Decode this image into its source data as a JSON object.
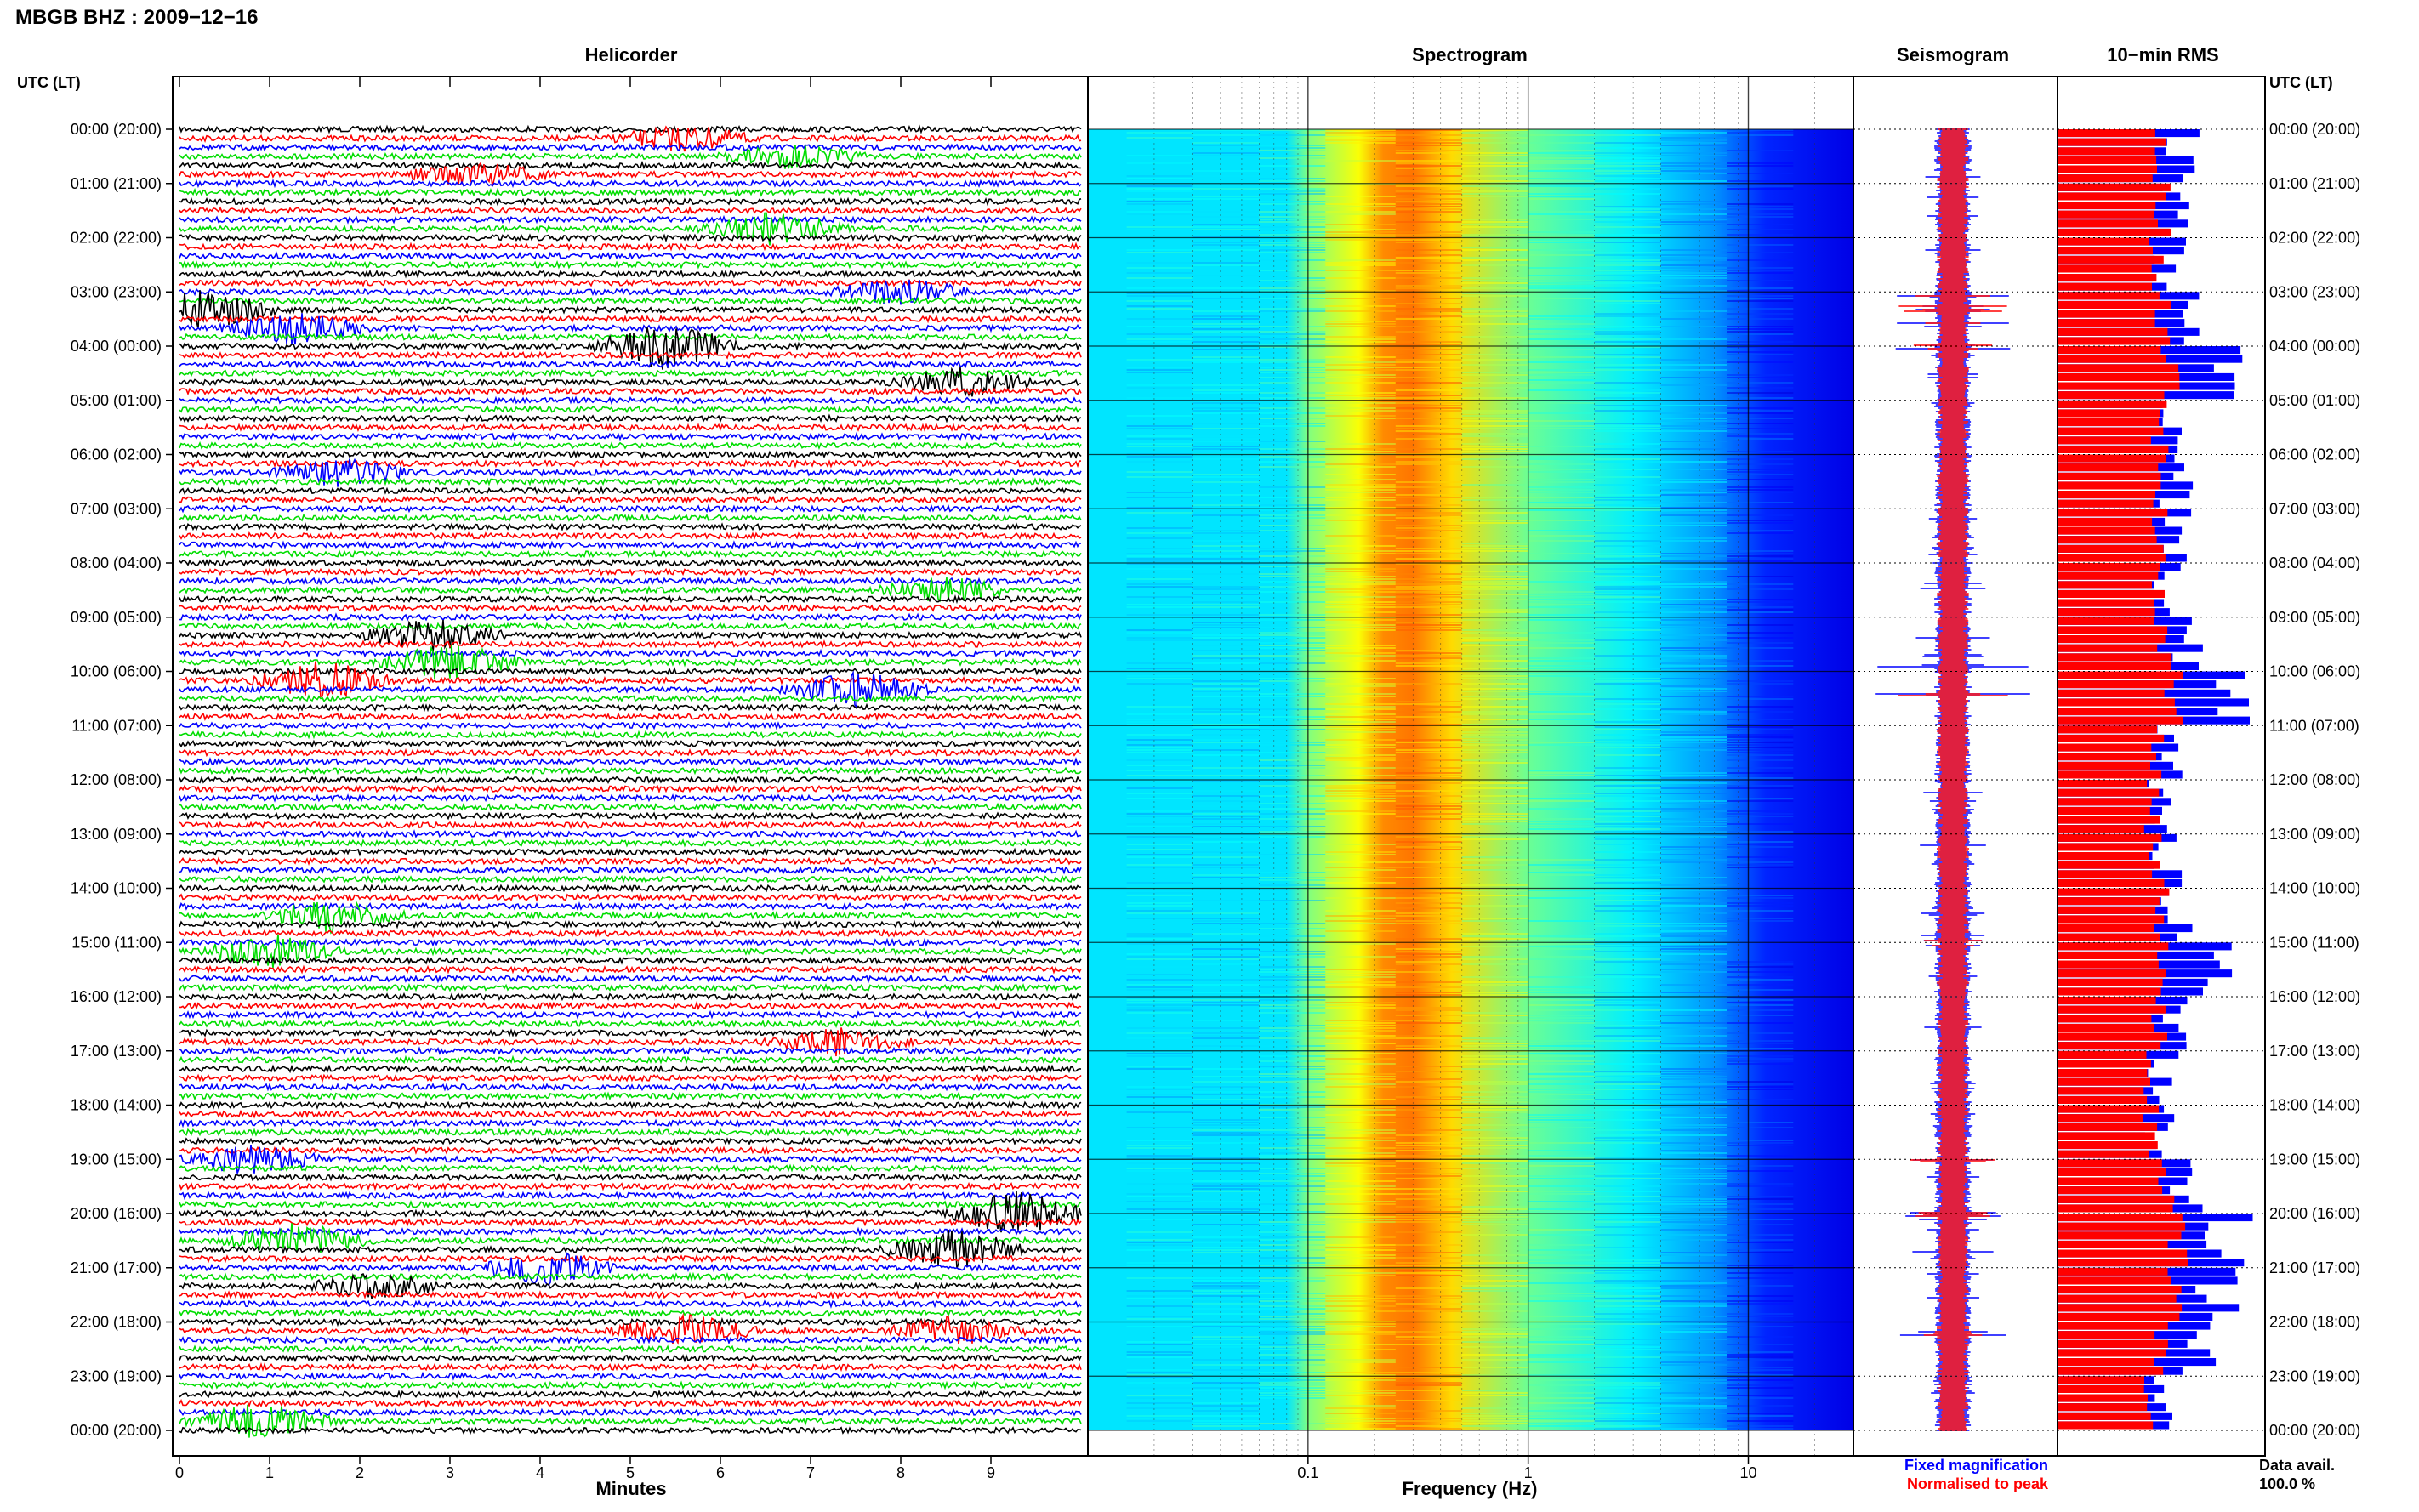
{
  "header": {
    "title": "MBGB BHZ : 2009−12−16"
  },
  "panels": {
    "helicorder": "Helicorder",
    "spectrogram": "Spectrogram",
    "seismogram": "Seismogram",
    "rms": "10−min RMS"
  },
  "axes": {
    "utc_label_left": "UTC (LT)",
    "utc_label_right": "UTC (LT)",
    "minutes_label": "Minutes",
    "frequency_label": "Frequency (Hz)"
  },
  "legend": {
    "fixed": "Fixed magnification",
    "normalised": "Normalised to peak",
    "fixed_color": "#0000ff",
    "normalised_color": "#ff0000"
  },
  "data_avail": {
    "label": "Data avail.",
    "value": "100.0 %"
  },
  "colors": {
    "trace_cycle": [
      "#000000",
      "#ff0000",
      "#0000ff",
      "#00dd00"
    ],
    "rms_fixed": "#0000ff",
    "rms_norm": "#ff0000"
  },
  "chart_data": [
    {
      "type": "line",
      "title": "Helicorder",
      "xlabel": "Minutes",
      "xlim": [
        0,
        10
      ],
      "xticks": [
        "0",
        "1",
        "2",
        "3",
        "4",
        "5",
        "6",
        "7",
        "8",
        "9"
      ],
      "ytick_labels": [
        "00:00 (20:00)",
        "01:00 (21:00)",
        "02:00 (22:00)",
        "03:00 (23:00)",
        "04:00 (00:00)",
        "05:00 (01:00)",
        "06:00 (02:00)",
        "07:00 (03:00)",
        "08:00 (04:00)",
        "09:00 (05:00)",
        "10:00 (06:00)",
        "11:00 (07:00)",
        "12:00 (08:00)",
        "13:00 (09:00)",
        "14:00 (10:00)",
        "15:00 (11:00)",
        "16:00 (12:00)",
        "17:00 (13:00)",
        "18:00 (14:00)",
        "19:00 (15:00)",
        "20:00 (16:00)",
        "21:00 (17:00)",
        "22:00 (18:00)",
        "23:00 (19:00)",
        "00:00 (20:00)"
      ],
      "lines_per_hour": 6,
      "minutes_per_line": 10,
      "events": [
        {
          "hour": 0.2,
          "minute": 5.6,
          "amp": 1.6
        },
        {
          "hour": 0.5,
          "minute": 6.8,
          "amp": 1.5
        },
        {
          "hour": 0.9,
          "minute": 3.3,
          "amp": 1.5
        },
        {
          "hour": 1.8,
          "minute": 6.6,
          "amp": 2.0
        },
        {
          "hour": 3.0,
          "minute": 8.0,
          "amp": 1.6
        },
        {
          "hour": 3.3,
          "minute": 0.3,
          "amp": 2.6
        },
        {
          "hour": 3.6,
          "minute": 1.3,
          "amp": 2.0
        },
        {
          "hour": 4.0,
          "minute": 5.4,
          "amp": 3.0
        },
        {
          "hour": 4.7,
          "minute": 8.7,
          "amp": 1.7
        },
        {
          "hour": 6.4,
          "minute": 1.8,
          "amp": 1.7
        },
        {
          "hour": 8.5,
          "minute": 8.5,
          "amp": 1.5
        },
        {
          "hour": 9.4,
          "minute": 2.8,
          "amp": 2.0
        },
        {
          "hour": 9.8,
          "minute": 3.0,
          "amp": 2.3
        },
        {
          "hour": 10.1,
          "minute": 1.6,
          "amp": 2.4
        },
        {
          "hour": 10.3,
          "minute": 7.5,
          "amp": 2.2
        },
        {
          "hour": 14.5,
          "minute": 1.7,
          "amp": 2.0
        },
        {
          "hour": 15.2,
          "minute": 1.0,
          "amp": 2.1
        },
        {
          "hour": 16.8,
          "minute": 7.3,
          "amp": 1.6
        },
        {
          "hour": 19.0,
          "minute": 0.8,
          "amp": 1.8
        },
        {
          "hour": 20.0,
          "minute": 9.3,
          "amp": 2.8
        },
        {
          "hour": 20.5,
          "minute": 1.3,
          "amp": 2.2
        },
        {
          "hour": 20.6,
          "minute": 8.6,
          "amp": 2.6
        },
        {
          "hour": 21.0,
          "minute": 4.1,
          "amp": 2.0
        },
        {
          "hour": 21.4,
          "minute": 2.2,
          "amp": 1.6
        },
        {
          "hour": 22.1,
          "minute": 5.6,
          "amp": 2.0
        },
        {
          "hour": 22.1,
          "minute": 8.6,
          "amp": 1.7
        },
        {
          "hour": 23.9,
          "minute": 0.9,
          "amp": 2.2
        }
      ]
    },
    {
      "type": "heatmap",
      "title": "Spectrogram",
      "xlabel": "Frequency (Hz)",
      "xscale": "log",
      "xlim": [
        0.01,
        30
      ],
      "xticks": [
        {
          "value": 0.1,
          "label": "0.1"
        },
        {
          "value": 1,
          "label": "1"
        },
        {
          "value": 10,
          "label": "10"
        }
      ],
      "ylim_hours": [
        0,
        24
      ],
      "colormap": "jet",
      "peak_band_hz": [
        0.2,
        0.4
      ],
      "profile": [
        {
          "f": 0.01,
          "level": 0.35
        },
        {
          "f": 0.08,
          "level": 0.35
        },
        {
          "f": 0.1,
          "level": 0.5
        },
        {
          "f": 0.17,
          "level": 0.62
        },
        {
          "f": 0.22,
          "level": 0.74
        },
        {
          "f": 0.3,
          "level": 0.76
        },
        {
          "f": 0.45,
          "level": 0.66
        },
        {
          "f": 1.0,
          "level": 0.48
        },
        {
          "f": 3.0,
          "level": 0.36
        },
        {
          "f": 7.0,
          "level": 0.27
        },
        {
          "f": 12.0,
          "level": 0.16
        },
        {
          "f": 30.0,
          "level": 0.1
        }
      ]
    },
    {
      "type": "line",
      "title": "Seismogram",
      "ylim_hours": [
        0,
        24
      ],
      "series": [
        {
          "name": "Fixed magnification",
          "color": "#0000ff"
        },
        {
          "name": "Normalised to peak",
          "color": "#ff0000"
        }
      ],
      "spikes": [
        {
          "hour": 3.1,
          "amp": 0.55
        },
        {
          "hour": 3.3,
          "amp": 0.9
        },
        {
          "hour": 3.6,
          "amp": 0.7
        },
        {
          "hour": 4.0,
          "amp": 0.6
        },
        {
          "hour": 9.4,
          "amp": 0.6
        },
        {
          "hour": 9.9,
          "amp": 0.8
        },
        {
          "hour": 10.4,
          "amp": 1.0
        },
        {
          "hour": 15.0,
          "amp": 0.4
        },
        {
          "hour": 19.0,
          "amp": 0.6
        },
        {
          "hour": 20.0,
          "amp": 0.55
        },
        {
          "hour": 20.7,
          "amp": 0.65
        },
        {
          "hour": 22.2,
          "amp": 0.45
        }
      ]
    },
    {
      "type": "bar",
      "title": "10−min RMS",
      "orientation": "horizontal",
      "bins_per_hour": 6,
      "hours": [
        0,
        1,
        2,
        3,
        4,
        5,
        6,
        7,
        8,
        9,
        10,
        11,
        12,
        13,
        14,
        15,
        16,
        17,
        18,
        19,
        20,
        21,
        22,
        23
      ],
      "series": [
        {
          "name": "Fixed magnification",
          "values": [
            0.62,
            0.58,
            0.55,
            0.62,
            0.8,
            0.6,
            0.58,
            0.6,
            0.55,
            0.62,
            0.85,
            0.55,
            0.5,
            0.55,
            0.6,
            0.75,
            0.6,
            0.52,
            0.5,
            0.65,
            0.85,
            0.78,
            0.68,
            0.52
          ]
        },
        {
          "name": "Normalised to peak",
          "values": [
            0.48,
            0.5,
            0.48,
            0.5,
            0.55,
            0.5,
            0.5,
            0.5,
            0.48,
            0.5,
            0.55,
            0.48,
            0.46,
            0.48,
            0.5,
            0.52,
            0.5,
            0.46,
            0.45,
            0.52,
            0.58,
            0.55,
            0.5,
            0.46
          ]
        }
      ]
    }
  ]
}
